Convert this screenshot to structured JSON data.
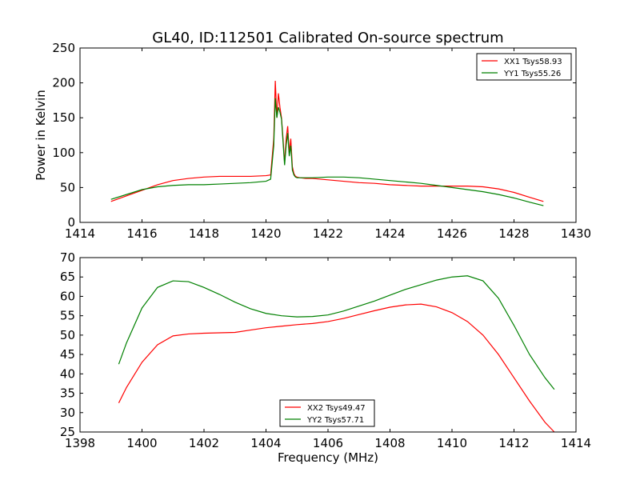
{
  "title": "GL40, ID:112501 Calibrated On-source spectrum",
  "chart_data": [
    {
      "type": "line",
      "title": "GL40, ID:112501 Calibrated On-source spectrum",
      "xlabel": "",
      "ylabel": "Power in Kelvin",
      "xlim": [
        1414,
        1430
      ],
      "ylim": [
        0,
        250
      ],
      "xticks": [
        "1414",
        "1416",
        "1418",
        "1420",
        "1422",
        "1424",
        "1426",
        "1428",
        "1430"
      ],
      "yticks": [
        "0",
        "50",
        "100",
        "150",
        "200",
        "250"
      ],
      "grid": false,
      "legend": "top-right",
      "series": [
        {
          "name": "XX1 Tsys58.93",
          "color": "#ff0000",
          "x": [
            1415.0,
            1415.5,
            1416.0,
            1416.5,
            1417.0,
            1417.5,
            1418.0,
            1418.5,
            1419.0,
            1419.5,
            1420.0,
            1420.15,
            1420.25,
            1420.3,
            1420.35,
            1420.4,
            1420.45,
            1420.5,
            1420.55,
            1420.6,
            1420.65,
            1420.7,
            1420.75,
            1420.8,
            1420.85,
            1420.9,
            1420.95,
            1421.0,
            1421.1,
            1421.3,
            1421.5,
            1422.0,
            1422.5,
            1423.0,
            1423.5,
            1424.0,
            1424.5,
            1425.0,
            1425.5,
            1426.0,
            1426.5,
            1427.0,
            1427.5,
            1428.0,
            1428.5,
            1428.95
          ],
          "y": [
            30,
            38,
            46,
            54,
            60,
            63,
            65,
            66,
            66,
            66,
            67,
            68,
            120,
            203,
            150,
            185,
            165,
            150,
            120,
            85,
            120,
            138,
            100,
            120,
            80,
            70,
            66,
            65,
            64,
            63,
            63,
            61,
            59,
            57,
            56,
            54,
            53,
            52,
            52,
            52,
            52,
            51,
            48,
            43,
            36,
            30
          ]
        },
        {
          "name": "YY1 Tsys55.26",
          "color": "#008000",
          "x": [
            1415.0,
            1415.5,
            1416.0,
            1416.5,
            1417.0,
            1417.5,
            1418.0,
            1418.5,
            1419.0,
            1419.5,
            1420.0,
            1420.15,
            1420.25,
            1420.3,
            1420.35,
            1420.4,
            1420.45,
            1420.5,
            1420.55,
            1420.6,
            1420.65,
            1420.7,
            1420.75,
            1420.8,
            1420.85,
            1420.9,
            1420.95,
            1421.0,
            1421.1,
            1421.3,
            1421.5,
            1422.0,
            1422.5,
            1423.0,
            1423.5,
            1424.0,
            1424.5,
            1425.0,
            1425.5,
            1426.0,
            1426.5,
            1427.0,
            1427.5,
            1428.0,
            1428.5,
            1428.95
          ],
          "y": [
            33,
            40,
            47,
            51,
            53,
            54,
            54,
            55,
            56,
            57,
            59,
            62,
            110,
            178,
            150,
            165,
            158,
            148,
            115,
            82,
            110,
            128,
            95,
            110,
            75,
            68,
            65,
            64,
            64,
            64,
            64,
            65,
            65,
            64,
            62,
            60,
            58,
            56,
            53,
            50,
            47,
            44,
            40,
            35,
            29,
            24
          ]
        }
      ]
    },
    {
      "type": "line",
      "title": "",
      "xlabel": "Frequency (MHz)",
      "ylabel": "",
      "xlim": [
        1398,
        1414
      ],
      "ylim": [
        25,
        70
      ],
      "xticks": [
        "1398",
        "1400",
        "1402",
        "1404",
        "1406",
        "1408",
        "1410",
        "1412",
        "1414"
      ],
      "yticks": [
        "25",
        "30",
        "35",
        "40",
        "45",
        "50",
        "55",
        "60",
        "65",
        "70"
      ],
      "grid": false,
      "legend": "bottom-center",
      "series": [
        {
          "name": "XX2 Tsys49.47",
          "color": "#ff0000",
          "x": [
            1399.25,
            1399.5,
            1400.0,
            1400.5,
            1401.0,
            1401.5,
            1402.0,
            1402.5,
            1403.0,
            1403.5,
            1404.0,
            1404.5,
            1405.0,
            1405.5,
            1406.0,
            1406.5,
            1407.0,
            1407.5,
            1408.0,
            1408.5,
            1409.0,
            1409.5,
            1410.0,
            1410.5,
            1411.0,
            1411.5,
            1412.0,
            1412.5,
            1413.0,
            1413.3
          ],
          "y": [
            32.5,
            36.5,
            43,
            47.5,
            49.8,
            50.3,
            50.5,
            50.6,
            50.7,
            51.3,
            51.9,
            52.3,
            52.7,
            53.0,
            53.5,
            54.3,
            55.3,
            56.3,
            57.2,
            57.8,
            58.0,
            57.3,
            55.8,
            53.5,
            50.0,
            45.0,
            39.0,
            33.0,
            27.5,
            25.0
          ]
        },
        {
          "name": "YY2 Tsys57.71",
          "color": "#008000",
          "x": [
            1399.25,
            1399.5,
            1400.0,
            1400.5,
            1401.0,
            1401.5,
            1402.0,
            1402.5,
            1403.0,
            1403.5,
            1404.0,
            1404.5,
            1405.0,
            1405.5,
            1406.0,
            1406.5,
            1407.0,
            1407.5,
            1408.0,
            1408.5,
            1409.0,
            1409.5,
            1410.0,
            1410.5,
            1411.0,
            1411.5,
            1412.0,
            1412.5,
            1413.0,
            1413.3
          ],
          "y": [
            42.5,
            48,
            57,
            62.3,
            64.0,
            63.8,
            62.3,
            60.5,
            58.5,
            56.8,
            55.6,
            55.0,
            54.7,
            54.8,
            55.2,
            56.2,
            57.5,
            58.8,
            60.3,
            61.8,
            63.0,
            64.2,
            65.0,
            65.3,
            64.0,
            59.5,
            52.5,
            45.0,
            39.0,
            36.0
          ]
        }
      ]
    }
  ]
}
